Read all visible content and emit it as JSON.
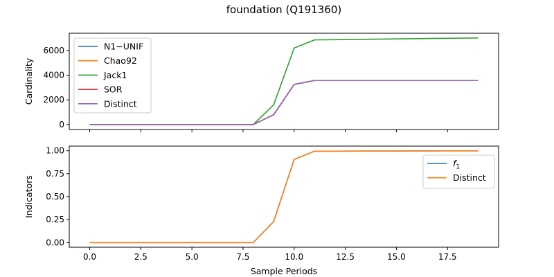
{
  "figure": {
    "title": "foundation (Q191360)"
  },
  "chart_data": [
    {
      "type": "line",
      "ylabel": "Cardinality",
      "xlabel": "",
      "xlim": [
        -1,
        20
      ],
      "ylim": [
        -400,
        7400
      ],
      "yticks": [
        0,
        2000,
        4000,
        6000
      ],
      "ytick_labels": [
        "0",
        "2000",
        "4000",
        "6000"
      ],
      "xticks": [
        0,
        2.5,
        5,
        7.5,
        10,
        12.5,
        15,
        17.5
      ],
      "xtick_labels": [],
      "legend_placement": "upper-left",
      "x": [
        0,
        1,
        2,
        3,
        4,
        5,
        6,
        7,
        8,
        9,
        10,
        11,
        12,
        13,
        14,
        15,
        16,
        17,
        18,
        19
      ],
      "series": [
        {
          "name": "N1−UNIF",
          "color": "#1f77b4",
          "values": [
            0,
            0,
            0,
            0,
            0,
            0,
            0,
            0,
            0,
            800,
            3250,
            3570,
            3570,
            3570,
            3570,
            3570,
            3570,
            3570,
            3570,
            3570
          ]
        },
        {
          "name": "Chao92",
          "color": "#ff7f0e",
          "values": [
            0,
            0,
            0,
            0,
            0,
            0,
            0,
            0,
            0,
            800,
            3250,
            3570,
            3570,
            3570,
            3570,
            3570,
            3570,
            3570,
            3570,
            3570
          ]
        },
        {
          "name": "Jack1",
          "color": "#2ca02c",
          "values": [
            0,
            0,
            0,
            0,
            0,
            0,
            0,
            0,
            0,
            1600,
            6200,
            6860,
            6880,
            6900,
            6920,
            6940,
            6960,
            6980,
            7000,
            7020
          ]
        },
        {
          "name": "SOR",
          "color": "#d62728",
          "values": [
            0,
            0,
            0,
            0,
            0,
            0,
            0,
            0,
            0,
            800,
            3250,
            3570,
            3570,
            3570,
            3570,
            3570,
            3570,
            3570,
            3570,
            3570
          ]
        },
        {
          "name": "Distinct",
          "color": "#9467bd",
          "values": [
            0,
            0,
            0,
            0,
            0,
            0,
            0,
            0,
            0,
            800,
            3250,
            3570,
            3570,
            3570,
            3570,
            3570,
            3570,
            3570,
            3570,
            3570
          ]
        }
      ]
    },
    {
      "type": "line",
      "ylabel": "Indicators",
      "xlabel": "Sample Periods",
      "xlim": [
        -1,
        20
      ],
      "ylim": [
        -0.05,
        1.05
      ],
      "yticks": [
        0,
        0.25,
        0.5,
        0.75,
        1.0
      ],
      "ytick_labels": [
        "0.00",
        "0.25",
        "0.50",
        "0.75",
        "1.00"
      ],
      "xticks": [
        0,
        2.5,
        5,
        7.5,
        10,
        12.5,
        15,
        17.5
      ],
      "xtick_labels": [
        "0.0",
        "2.5",
        "5.0",
        "7.5",
        "10.0",
        "12.5",
        "15.0",
        "17.5"
      ],
      "legend_placement": "upper-right",
      "x": [
        0,
        1,
        2,
        3,
        4,
        5,
        6,
        7,
        8,
        9,
        10,
        11,
        12,
        13,
        14,
        15,
        16,
        17,
        18,
        19
      ],
      "series": [
        {
          "name": "f₁",
          "name_base": "f",
          "name_sub": "1",
          "color": "#1f77b4",
          "values": [
            0,
            0,
            0,
            0,
            0,
            0,
            0,
            0,
            0,
            0.23,
            0.905,
            0.995,
            0.995,
            0.996,
            0.997,
            0.997,
            0.998,
            0.998,
            0.999,
            0.999
          ]
        },
        {
          "name": "Distinct",
          "color": "#ff7f0e",
          "values": [
            0,
            0,
            0,
            0,
            0,
            0,
            0,
            0,
            0,
            0.23,
            0.905,
            0.995,
            0.995,
            0.996,
            0.997,
            0.997,
            0.998,
            0.998,
            0.999,
            0.999
          ]
        }
      ]
    }
  ]
}
